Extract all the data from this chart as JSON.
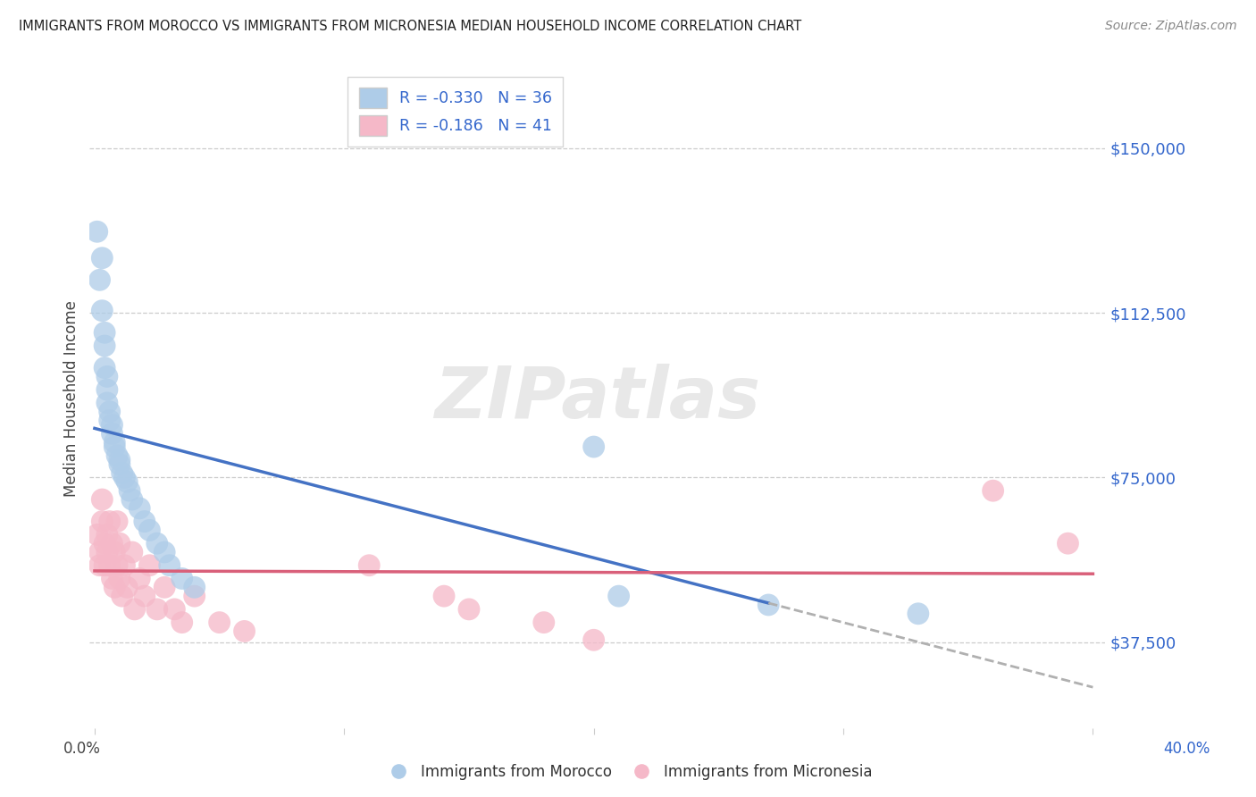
{
  "title": "IMMIGRANTS FROM MOROCCO VS IMMIGRANTS FROM MICRONESIA MEDIAN HOUSEHOLD INCOME CORRELATION CHART",
  "source": "Source: ZipAtlas.com",
  "ylabel": "Median Household Income",
  "xlim": [
    -0.002,
    0.405
  ],
  "ylim": [
    18000,
    168000
  ],
  "yticks": [
    37500,
    75000,
    112500,
    150000
  ],
  "ytick_labels": [
    "$37,500",
    "$75,000",
    "$112,500",
    "$150,000"
  ],
  "xticks": [
    0.0,
    0.1,
    0.2,
    0.3,
    0.4
  ],
  "morocco_R": "-0.330",
  "morocco_N": "36",
  "micronesia_R": "-0.186",
  "micronesia_N": "41",
  "morocco_color": "#aecce8",
  "micronesia_color": "#f5b8c8",
  "morocco_line_color": "#4472c4",
  "micronesia_line_color": "#d9607a",
  "dashed_line_color": "#b0b0b0",
  "watermark": "ZIPatlas",
  "background_color": "#ffffff",
  "morocco_x": [
    0.001,
    0.002,
    0.003,
    0.003,
    0.004,
    0.004,
    0.004,
    0.005,
    0.005,
    0.005,
    0.006,
    0.006,
    0.007,
    0.007,
    0.008,
    0.008,
    0.009,
    0.01,
    0.01,
    0.011,
    0.012,
    0.013,
    0.014,
    0.015,
    0.018,
    0.02,
    0.022,
    0.025,
    0.028,
    0.03,
    0.035,
    0.04,
    0.2,
    0.21,
    0.27,
    0.33
  ],
  "morocco_y": [
    131000,
    120000,
    113000,
    125000,
    108000,
    105000,
    100000,
    98000,
    95000,
    92000,
    90000,
    88000,
    87000,
    85000,
    83000,
    82000,
    80000,
    79000,
    78000,
    76000,
    75000,
    74000,
    72000,
    70000,
    68000,
    65000,
    63000,
    60000,
    58000,
    55000,
    52000,
    50000,
    82000,
    48000,
    46000,
    44000
  ],
  "micronesia_x": [
    0.001,
    0.002,
    0.002,
    0.003,
    0.003,
    0.004,
    0.004,
    0.005,
    0.005,
    0.006,
    0.006,
    0.007,
    0.007,
    0.008,
    0.008,
    0.009,
    0.009,
    0.01,
    0.01,
    0.011,
    0.012,
    0.013,
    0.015,
    0.016,
    0.018,
    0.02,
    0.022,
    0.025,
    0.028,
    0.032,
    0.035,
    0.04,
    0.05,
    0.06,
    0.11,
    0.14,
    0.15,
    0.18,
    0.2,
    0.36,
    0.39
  ],
  "micronesia_y": [
    62000,
    58000,
    55000,
    70000,
    65000,
    60000,
    55000,
    62000,
    58000,
    65000,
    55000,
    52000,
    60000,
    58000,
    50000,
    55000,
    65000,
    52000,
    60000,
    48000,
    55000,
    50000,
    58000,
    45000,
    52000,
    48000,
    55000,
    45000,
    50000,
    45000,
    42000,
    48000,
    42000,
    40000,
    55000,
    48000,
    45000,
    42000,
    38000,
    72000,
    60000
  ]
}
